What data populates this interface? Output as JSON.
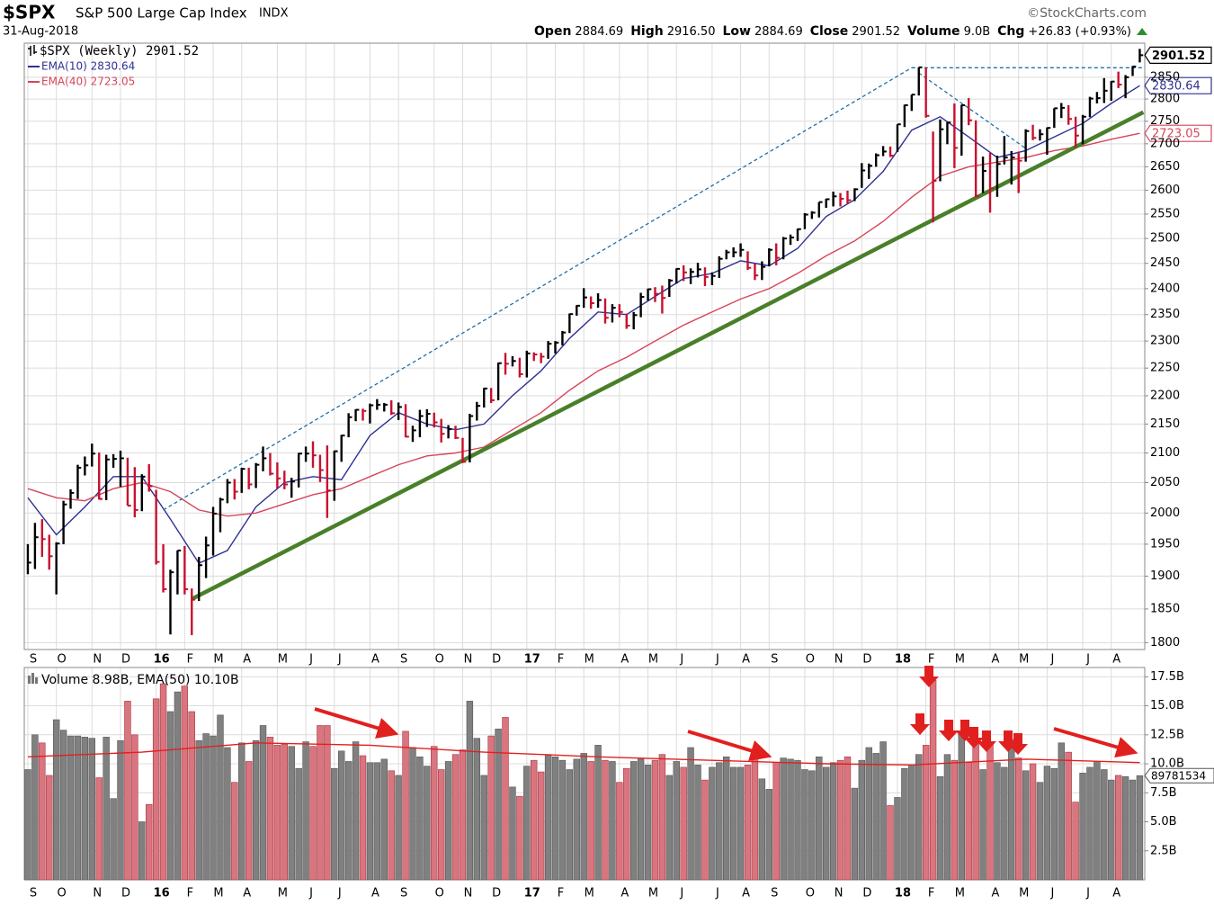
{
  "chart_data": {
    "type": "ohlc",
    "symbol": "$SPX",
    "name": "S&P 500 Large Cap Index",
    "exchange": "INDX",
    "date": "31-Aug-2018",
    "source": "©StockCharts.com",
    "quote": [
      {
        "label": "Open",
        "value": "2884.69"
      },
      {
        "label": "High",
        "value": "2916.50"
      },
      {
        "label": "Low",
        "value": "2884.69"
      },
      {
        "label": "Close",
        "value": "2901.52"
      },
      {
        "label": "Volume",
        "value": "9.0B"
      },
      {
        "label": "Chg",
        "value": "+26.83 (+0.93%)"
      }
    ],
    "legend": "$SPX (Weekly) 2901.52",
    "log_scale": true,
    "grid": true,
    "up_color": "#000000",
    "down_color": "#c8102e",
    "xlim": [
      -0.5,
      156.7
    ],
    "xticks": [
      {
        "value": 0,
        "label": "S"
      },
      {
        "value": 4,
        "label": "O"
      },
      {
        "value": 9,
        "label": "N"
      },
      {
        "value": 13,
        "label": "D"
      },
      {
        "value": 18,
        "label": "16"
      },
      {
        "value": 22,
        "label": "F"
      },
      {
        "value": 26,
        "label": "M"
      },
      {
        "value": 30,
        "label": "A"
      },
      {
        "value": 35,
        "label": "M"
      },
      {
        "value": 39,
        "label": "J"
      },
      {
        "value": 43,
        "label": "J"
      },
      {
        "value": 48,
        "label": "A"
      },
      {
        "value": 52,
        "label": "S"
      },
      {
        "value": 57,
        "label": "O"
      },
      {
        "value": 61,
        "label": "N"
      },
      {
        "value": 65,
        "label": "D"
      },
      {
        "value": 70,
        "label": "17"
      },
      {
        "value": 74,
        "label": "F"
      },
      {
        "value": 78,
        "label": "M"
      },
      {
        "value": 83,
        "label": "A"
      },
      {
        "value": 87,
        "label": "M"
      },
      {
        "value": 91,
        "label": "J"
      },
      {
        "value": 96,
        "label": "J"
      },
      {
        "value": 100,
        "label": "A"
      },
      {
        "value": 104,
        "label": "S"
      },
      {
        "value": 109,
        "label": "O"
      },
      {
        "value": 113,
        "label": "N"
      },
      {
        "value": 117,
        "label": "D"
      },
      {
        "value": 122,
        "label": "18"
      },
      {
        "value": 126,
        "label": "F"
      },
      {
        "value": 130,
        "label": "M"
      },
      {
        "value": 135,
        "label": "A"
      },
      {
        "value": 139,
        "label": "M"
      },
      {
        "value": 143,
        "label": "J"
      },
      {
        "value": 148,
        "label": "J"
      },
      {
        "value": 152,
        "label": "A"
      }
    ],
    "ylim": [
      1790,
      2930
    ],
    "yticks": [
      1800,
      1850,
      1900,
      1950,
      2000,
      2050,
      2100,
      2150,
      2200,
      2250,
      2300,
      2350,
      2400,
      2450,
      2500,
      2550,
      2600,
      2650,
      2700,
      2750,
      2800,
      2850
    ],
    "high": [
      1950,
      1984,
      1990,
      1965,
      1953,
      2020,
      2039,
      2080,
      2094,
      2116,
      2101,
      2097,
      2098,
      2104,
      2092,
      2076,
      2064,
      2081,
      2038,
      1950,
      1910,
      1940,
      1947,
      1881,
      1930,
      1962,
      2010,
      2025,
      2056,
      2056,
      2075,
      2075,
      2083,
      2111,
      2100,
      2084,
      2070,
      2058,
      2100,
      2111,
      2120,
      2097,
      2113,
      2104,
      2131,
      2169,
      2176,
      2177,
      2186,
      2194,
      2187,
      2192,
      2188,
      2185,
      2147,
      2175,
      2176,
      2170,
      2159,
      2148,
      2147,
      2126,
      2168,
      2189,
      2214,
      2214,
      2260,
      2278,
      2272,
      2269,
      2282,
      2279,
      2278,
      2300,
      2300,
      2319,
      2352,
      2368,
      2401,
      2385,
      2391,
      2381,
      2370,
      2370,
      2352,
      2355,
      2392,
      2400,
      2403,
      2406,
      2419,
      2440,
      2446,
      2440,
      2451,
      2442,
      2432,
      2464,
      2477,
      2482,
      2490,
      2474,
      2450,
      2454,
      2480,
      2490,
      2503,
      2508,
      2520,
      2552,
      2556,
      2575,
      2582,
      2597,
      2594,
      2599,
      2604,
      2658,
      2657,
      2679,
      2695,
      2694,
      2743,
      2787,
      2810,
      2873,
      2872,
      2727,
      2754,
      2748,
      2790,
      2787,
      2802,
      2752,
      2672,
      2680,
      2674,
      2717,
      2684,
      2683,
      2732,
      2742,
      2732,
      2736,
      2779,
      2791,
      2786,
      2760,
      2764,
      2805,
      2816,
      2848,
      2841,
      2863,
      2855,
      2876,
      2916.5
    ],
    "low": [
      1903,
      1911,
      1930,
      1910,
      1872,
      1950,
      2007,
      2023,
      2062,
      2077,
      2022,
      2021,
      2075,
      2043,
      2012,
      1993,
      2003,
      2035,
      1918,
      1875,
      1812,
      1872,
      1872,
      1811,
      1862,
      1897,
      1932,
      1969,
      2016,
      2022,
      2033,
      2039,
      2041,
      2069,
      2062,
      2040,
      2039,
      2025,
      2042,
      2085,
      2075,
      2051,
      1992,
      2020,
      2085,
      2127,
      2155,
      2156,
      2151,
      2175,
      2172,
      2166,
      2157,
      2127,
      2119,
      2127,
      2145,
      2144,
      2118,
      2125,
      2124,
      2083,
      2084,
      2156,
      2179,
      2187,
      2192,
      2238,
      2253,
      2233,
      2233,
      2263,
      2259,
      2267,
      2277,
      2292,
      2315,
      2348,
      2363,
      2361,
      2363,
      2333,
      2335,
      2345,
      2323,
      2322,
      2345,
      2377,
      2374,
      2352,
      2384,
      2410,
      2415,
      2409,
      2422,
      2405,
      2407,
      2421,
      2458,
      2462,
      2463,
      2437,
      2417,
      2417,
      2444,
      2446,
      2458,
      2487,
      2495,
      2519,
      2540,
      2543,
      2563,
      2566,
      2566,
      2572,
      2577,
      2605,
      2624,
      2650,
      2673,
      2671,
      2682,
      2737,
      2773,
      2808,
      2758,
      2533,
      2619,
      2699,
      2647,
      2674,
      2741,
      2585,
      2594,
      2553,
      2586,
      2655,
      2612,
      2594,
      2661,
      2708,
      2707,
      2676,
      2735,
      2757,
      2742,
      2692,
      2699,
      2759,
      2790,
      2791,
      2796,
      2825,
      2802,
      2853,
      2884.69
    ],
    "close": [
      1921,
      1961,
      1958,
      1931,
      1951,
      2014,
      2033,
      2075,
      2079,
      2099,
      2023,
      2089,
      2090,
      2091,
      2012,
      2005,
      2060,
      2044,
      1922,
      1880,
      1906,
      1940,
      1880,
      1864,
      1917,
      1948,
      1999,
      2022,
      2050,
      2035,
      2073,
      2047,
      2080,
      2091,
      2065,
      2057,
      2047,
      2052,
      2099,
      2099,
      2096,
      2071,
      2037,
      2103,
      2130,
      2162,
      2175,
      2173,
      2183,
      2184,
      2184,
      2169,
      2180,
      2128,
      2139,
      2164,
      2168,
      2153,
      2133,
      2141,
      2126,
      2085,
      2164,
      2182,
      2213,
      2192,
      2259,
      2258,
      2263,
      2239,
      2277,
      2275,
      2271,
      2295,
      2297,
      2316,
      2351,
      2367,
      2383,
      2372,
      2378,
      2344,
      2363,
      2355,
      2329,
      2349,
      2384,
      2399,
      2390,
      2382,
      2416,
      2439,
      2432,
      2433,
      2438,
      2423,
      2425,
      2459,
      2472,
      2472,
      2477,
      2441,
      2426,
      2443,
      2477,
      2461,
      2500,
      2502,
      2519,
      2549,
      2553,
      2575,
      2581,
      2587,
      2582,
      2579,
      2602,
      2642,
      2652,
      2675,
      2683,
      2674,
      2743,
      2786,
      2810,
      2873,
      2762,
      2620,
      2732,
      2747,
      2691,
      2786,
      2752,
      2588,
      2641,
      2604,
      2656,
      2670,
      2670,
      2663,
      2728,
      2713,
      2721,
      2735,
      2779,
      2780,
      2755,
      2718,
      2760,
      2801,
      2802,
      2819,
      2840,
      2833,
      2850,
      2875,
      2901.52
    ],
    "series": [
      {
        "name": "EMA(10) 2830.64",
        "color": "#2e3192",
        "x": [
          0,
          4,
          8,
          12,
          16,
          20,
          24,
          28,
          32,
          36,
          40,
          44,
          48,
          52,
          56,
          60,
          64,
          68,
          72,
          76,
          80,
          84,
          88,
          92,
          96,
          100,
          104,
          108,
          112,
          116,
          120,
          124,
          128,
          132,
          136,
          140,
          144,
          148,
          152,
          156
        ],
        "values": [
          2025,
          1965,
          2010,
          2060,
          2060,
          1990,
          1920,
          1940,
          2010,
          2050,
          2060,
          2055,
          2130,
          2170,
          2150,
          2140,
          2150,
          2200,
          2245,
          2305,
          2355,
          2350,
          2385,
          2420,
          2430,
          2455,
          2445,
          2480,
          2545,
          2580,
          2640,
          2730,
          2760,
          2715,
          2670,
          2685,
          2715,
          2745,
          2790,
          2830.64
        ]
      },
      {
        "name": "EMA(40) 2723.05",
        "color": "#d6455a",
        "x": [
          0,
          4,
          8,
          12,
          16,
          20,
          24,
          28,
          32,
          36,
          40,
          44,
          48,
          52,
          56,
          60,
          64,
          68,
          72,
          76,
          80,
          84,
          88,
          92,
          96,
          100,
          104,
          108,
          112,
          116,
          120,
          124,
          128,
          132,
          136,
          140,
          144,
          148,
          152,
          156
        ],
        "values": [
          2040,
          2025,
          2020,
          2040,
          2050,
          2035,
          2005,
          1995,
          2000,
          2015,
          2030,
          2040,
          2060,
          2080,
          2095,
          2100,
          2110,
          2140,
          2170,
          2210,
          2245,
          2270,
          2300,
          2330,
          2355,
          2380,
          2400,
          2430,
          2465,
          2495,
          2535,
          2585,
          2630,
          2650,
          2660,
          2670,
          2685,
          2695,
          2710,
          2723.05
        ]
      }
    ],
    "price_tags": [
      {
        "value": 2901.52,
        "label": "2901.52",
        "color": "#000000"
      },
      {
        "value": 2830.64,
        "label": "2830.64",
        "color": "#2e3192"
      },
      {
        "value": 2723.05,
        "label": "2723.05",
        "color": "#d6455a"
      }
    ],
    "trendlines": [
      {
        "x": [
          23,
          156.5
        ],
        "y": [
          1865,
          2770
        ],
        "color": "#4a7f2a",
        "dashed": false
      },
      {
        "x": [
          19,
          124
        ],
        "y": [
          2005,
          2872
        ],
        "color": "#1a6fb0",
        "dashed": true
      },
      {
        "x": [
          124,
          156.5
        ],
        "y": [
          2872,
          2872
        ],
        "color": "#1a6fb0",
        "dashed": true
      },
      {
        "x": [
          125,
          140
        ],
        "y": [
          2860,
          2690
        ],
        "color": "#1a6fb0",
        "dashed": true
      }
    ],
    "volume": {
      "title": "Volume 8.98B, EMA(50) 10.10B",
      "ylim": [
        0,
        18.3
      ],
      "yticks": [
        {
          "value": 2.5,
          "label": "2.5B"
        },
        {
          "value": 5,
          "label": "5.0B"
        },
        {
          "value": 7.5,
          "label": "7.5B"
        },
        {
          "value": 10,
          "label": "10.0B"
        },
        {
          "value": 12.5,
          "label": "12.5B"
        },
        {
          "value": 15,
          "label": "15.0B"
        },
        {
          "value": 17.5,
          "label": "17.5B"
        }
      ],
      "values": [
        9.5,
        12.5,
        11.8,
        9.0,
        13.8,
        12.9,
        12.4,
        12.4,
        12.3,
        12.2,
        8.8,
        12.3,
        7.0,
        12.0,
        15.4,
        12.5,
        5.0,
        6.5,
        15.6,
        16.9,
        14.5,
        16.2,
        16.7,
        14.5,
        12.0,
        12.6,
        12.4,
        14.2,
        11.4,
        8.4,
        11.8,
        10.2,
        12.0,
        13.3,
        12.3,
        11.6,
        11.7,
        11.5,
        9.6,
        11.9,
        11.5,
        13.3,
        13.3,
        9.6,
        11.1,
        10.2,
        11.9,
        10.7,
        10.1,
        10.1,
        10.4,
        9.4,
        9.0,
        12.8,
        11.4,
        10.6,
        9.8,
        11.5,
        9.5,
        10.2,
        10.8,
        11.2,
        15.4,
        12.2,
        9.0,
        12.4,
        13.0,
        14.0,
        8.0,
        7.2,
        9.8,
        10.3,
        9.3,
        10.8,
        10.6,
        10.3,
        9.5,
        10.4,
        10.9,
        10.2,
        11.6,
        10.3,
        10.2,
        8.4,
        9.6,
        10.2,
        10.4,
        9.9,
        10.3,
        10.8,
        9.0,
        10.2,
        9.7,
        11.4,
        9.9,
        8.6,
        9.7,
        10.1,
        10.6,
        9.7,
        9.7,
        9.9,
        10.8,
        8.7,
        7.8,
        10.1,
        10.5,
        10.4,
        10.3,
        9.5,
        9.4,
        10.6,
        9.7,
        10.1,
        10.3,
        10.6,
        7.9,
        10.3,
        11.4,
        10.9,
        11.9,
        6.4,
        7.1,
        9.6,
        9.9,
        10.8,
        11.6,
        17.2,
        8.9,
        10.8,
        10.3,
        12.7,
        10.1,
        12.1,
        9.5,
        11.9,
        10.1,
        9.7,
        12.1,
        10.5,
        9.4,
        10.0,
        8.4,
        9.8,
        9.6,
        11.8,
        11.0,
        6.7,
        9.2,
        9.7,
        10.2,
        9.5,
        8.6,
        9.0,
        8.9,
        8.6,
        8.98
      ],
      "tag": "89781534",
      "ema": {
        "color": "#e02020",
        "x": [
          0,
          16,
          32,
          48,
          64,
          80,
          96,
          112,
          124,
          140,
          156
        ],
        "values": [
          10.6,
          11.0,
          11.8,
          11.6,
          11.0,
          10.6,
          10.3,
          10.0,
          9.9,
          10.4,
          10.1
        ]
      }
    }
  }
}
